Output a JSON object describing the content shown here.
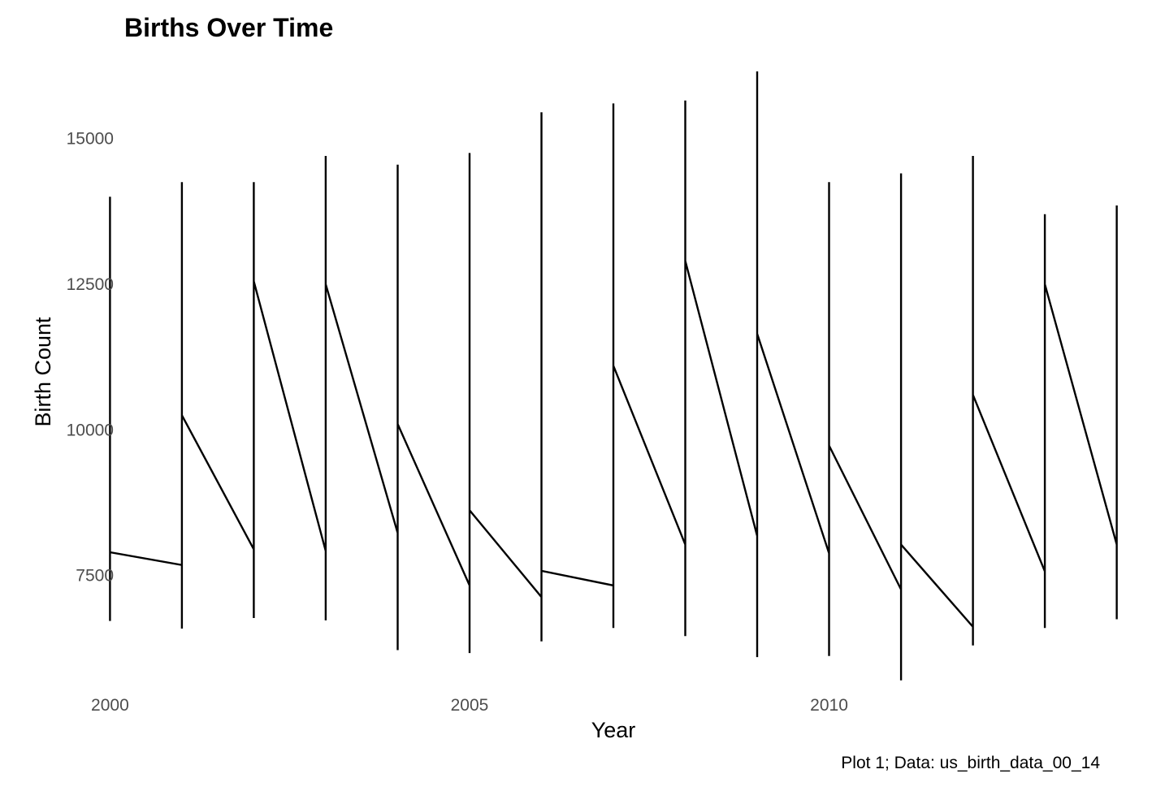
{
  "chart_data": {
    "type": "line",
    "title": "Births Over Time",
    "xlabel": "Year",
    "ylabel": "Birth Count",
    "caption": "Plot 1; Data: us_birth_data_00_14",
    "xlim": [
      1999.6,
      2014.4
    ],
    "ylim": [
      5600,
      16400
    ],
    "x_ticks": [
      2000,
      2005,
      2010
    ],
    "y_ticks": [
      7500,
      10000,
      12500,
      15000
    ],
    "grid": false,
    "legend": "none",
    "line_color": "#000000",
    "series": [
      {
        "points": [
          {
            "x": 2000,
            "y": 6720
          },
          {
            "x": 2000,
            "y": 14000
          },
          {
            "x": 2000,
            "y": 7900
          },
          {
            "x": 2001,
            "y": 7680
          },
          {
            "x": 2001,
            "y": 6590
          },
          {
            "x": 2001,
            "y": 14250
          },
          {
            "x": 2001,
            "y": 10250
          },
          {
            "x": 2002,
            "y": 7950
          },
          {
            "x": 2002,
            "y": 6770
          },
          {
            "x": 2002,
            "y": 14250
          },
          {
            "x": 2002,
            "y": 12550
          },
          {
            "x": 2003,
            "y": 7920
          },
          {
            "x": 2003,
            "y": 6730
          },
          {
            "x": 2003,
            "y": 14700
          },
          {
            "x": 2003,
            "y": 12500
          },
          {
            "x": 2004,
            "y": 8230
          },
          {
            "x": 2004,
            "y": 6220
          },
          {
            "x": 2004,
            "y": 14550
          },
          {
            "x": 2004,
            "y": 10100
          },
          {
            "x": 2005,
            "y": 7330
          },
          {
            "x": 2005,
            "y": 6170
          },
          {
            "x": 2005,
            "y": 14750
          },
          {
            "x": 2005,
            "y": 8620
          },
          {
            "x": 2006,
            "y": 7130
          },
          {
            "x": 2006,
            "y": 6370
          },
          {
            "x": 2006,
            "y": 15450
          },
          {
            "x": 2006,
            "y": 7580
          },
          {
            "x": 2007,
            "y": 7330
          },
          {
            "x": 2007,
            "y": 6600
          },
          {
            "x": 2007,
            "y": 15600
          },
          {
            "x": 2007,
            "y": 11100
          },
          {
            "x": 2008,
            "y": 8030
          },
          {
            "x": 2008,
            "y": 6460
          },
          {
            "x": 2008,
            "y": 15650
          },
          {
            "x": 2008,
            "y": 12900
          },
          {
            "x": 2009,
            "y": 8180
          },
          {
            "x": 2009,
            "y": 6100
          },
          {
            "x": 2009,
            "y": 16150
          },
          {
            "x": 2009,
            "y": 11650
          },
          {
            "x": 2010,
            "y": 7880
          },
          {
            "x": 2010,
            "y": 6120
          },
          {
            "x": 2010,
            "y": 14250
          },
          {
            "x": 2010,
            "y": 9730
          },
          {
            "x": 2011,
            "y": 7260
          },
          {
            "x": 2011,
            "y": 5700
          },
          {
            "x": 2011,
            "y": 14400
          },
          {
            "x": 2011,
            "y": 8030
          },
          {
            "x": 2012,
            "y": 6620
          },
          {
            "x": 2012,
            "y": 6300
          },
          {
            "x": 2012,
            "y": 14700
          },
          {
            "x": 2012,
            "y": 10600
          },
          {
            "x": 2013,
            "y": 7570
          },
          {
            "x": 2013,
            "y": 6600
          },
          {
            "x": 2013,
            "y": 13700
          },
          {
            "x": 2013,
            "y": 12500
          },
          {
            "x": 2014,
            "y": 8030
          },
          {
            "x": 2014,
            "y": 6750
          },
          {
            "x": 2014,
            "y": 13850
          },
          {
            "x": 2014,
            "y": 6900
          }
        ]
      }
    ]
  }
}
